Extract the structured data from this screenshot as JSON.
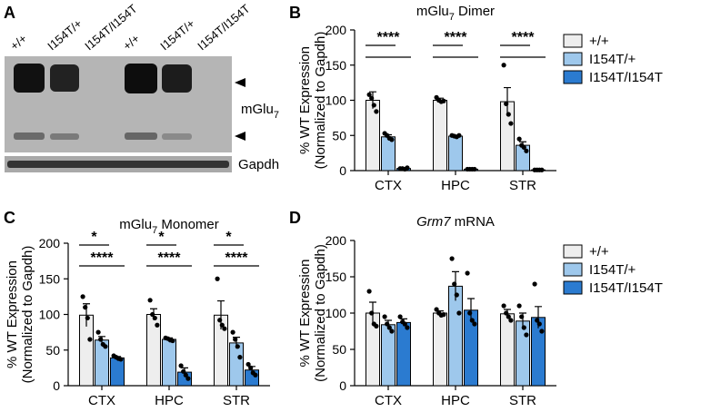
{
  "blot": {
    "panel_label": "A",
    "lanes": [
      "+/+",
      "I154T/+",
      "I154T/I154T",
      "+/+",
      "I154T/+",
      "I154T/I154T"
    ],
    "target": [
      {
        "text": "mGlu"
      },
      {
        "text": "7",
        "sub": true
      }
    ],
    "loading_control": "Gapdh"
  },
  "chart_data": [
    {
      "type": "bar",
      "panel_label": "B",
      "title": [
        {
          "text": "mGlu"
        },
        {
          "text": "7",
          "sub": true
        },
        {
          "text": " Dimer"
        }
      ],
      "ylabel": [
        "% WT Expression",
        "(Normalized to Gapdh)"
      ],
      "categories": [
        "CTX",
        "HPC",
        "STR"
      ],
      "ylim": [
        0,
        200
      ],
      "yticks": [
        0,
        50,
        100,
        150,
        200
      ],
      "legend": true,
      "series": [
        {
          "name": "+/+",
          "color": "#eeeeee",
          "values": [
            100,
            100,
            98
          ],
          "errors": [
            12,
            3,
            20
          ],
          "points": [
            [
              108,
              103,
              93,
              84
            ],
            [
              104,
              100,
              98,
              99
            ],
            [
              150,
              95,
              80,
              67
            ]
          ]
        },
        {
          "name": "I154T/+",
          "color": "#9ec8ec",
          "values": [
            48,
            49,
            36
          ],
          "errors": [
            3,
            1,
            5
          ],
          "points": [
            [
              53,
              50,
              46,
              44
            ],
            [
              50,
              49,
              48,
              50
            ],
            [
              45,
              36,
              33,
              28
            ]
          ]
        },
        {
          "name": "I154T/I154T",
          "color": "#2b7bd0",
          "values": [
            3,
            2,
            1
          ],
          "errors": [
            0.5,
            0.3,
            0.2
          ],
          "points": [
            [
              3,
              3,
              2,
              4
            ],
            [
              2,
              2,
              2,
              2
            ],
            [
              1,
              1,
              1,
              1
            ]
          ]
        }
      ],
      "significance": [
        {
          "category": 0,
          "comparisons": [
            [
              0,
              1
            ],
            [
              0,
              2
            ]
          ],
          "text": "****"
        },
        {
          "category": 1,
          "comparisons": [
            [
              0,
              1
            ],
            [
              0,
              2
            ]
          ],
          "text": "****"
        },
        {
          "category": 2,
          "comparisons": [
            [
              0,
              1
            ],
            [
              0,
              2
            ]
          ],
          "text": "****"
        }
      ]
    },
    {
      "type": "bar",
      "panel_label": "C",
      "title": [
        {
          "text": "mGlu"
        },
        {
          "text": "7",
          "sub": true
        },
        {
          "text": " Monomer"
        }
      ],
      "ylabel": [
        "% WT Expression",
        "(Normalized to Gapdh)"
      ],
      "categories": [
        "CTX",
        "HPC",
        "STR"
      ],
      "ylim": [
        0,
        200
      ],
      "yticks": [
        0,
        50,
        100,
        150,
        200
      ],
      "legend": false,
      "series": [
        {
          "color": "#eeeeee",
          "values": [
            99,
            100,
            99
          ],
          "errors": [
            16,
            8,
            20
          ],
          "points": [
            [
              125,
              110,
              95,
              65
            ],
            [
              120,
              100,
              95,
              85
            ],
            [
              150,
              92,
              85,
              80
            ]
          ]
        },
        {
          "color": "#9ec8ec",
          "values": [
            64,
            65,
            60
          ],
          "errors": [
            5,
            2,
            8
          ],
          "points": [
            [
              75,
              65,
              58,
              55
            ],
            [
              67,
              66,
              64,
              63
            ],
            [
              75,
              65,
              55,
              40
            ]
          ]
        },
        {
          "color": "#2b7bd0",
          "values": [
            39,
            19,
            22
          ],
          "errors": [
            2,
            6,
            5
          ],
          "points": [
            [
              42,
              40,
              38,
              37
            ],
            [
              28,
              20,
              15,
              10
            ],
            [
              30,
              25,
              18,
              15
            ]
          ]
        }
      ],
      "significance": [
        {
          "category": 0,
          "comparisons": [
            [
              0,
              1
            ]
          ],
          "text": "*"
        },
        {
          "category": 0,
          "comparisons": [
            [
              0,
              2
            ]
          ],
          "text": "****"
        },
        {
          "category": 1,
          "comparisons": [
            [
              0,
              1
            ]
          ],
          "text": "*"
        },
        {
          "category": 1,
          "comparisons": [
            [
              0,
              2
            ]
          ],
          "text": "****"
        },
        {
          "category": 2,
          "comparisons": [
            [
              0,
              1
            ]
          ],
          "text": "*"
        },
        {
          "category": 2,
          "comparisons": [
            [
              0,
              2
            ]
          ],
          "text": "****"
        }
      ]
    },
    {
      "type": "bar",
      "panel_label": "D",
      "title": [
        {
          "text": "Grm7",
          "italic": true
        },
        {
          "text": " mRNA"
        }
      ],
      "ylabel": [
        "% WT Expression",
        "(Normalized to Gapdh)"
      ],
      "categories": [
        "CTX",
        "HPC",
        "STR"
      ],
      "ylim": [
        0,
        200
      ],
      "yticks": [
        0,
        50,
        100,
        150,
        200
      ],
      "legend": true,
      "series": [
        {
          "name": "+/+",
          "color": "#eeeeee",
          "values": [
            100,
            100,
            99
          ],
          "errors": [
            15,
            3,
            6
          ],
          "points": [
            [
              130,
              100,
              85,
              82
            ],
            [
              105,
              100,
              97,
              98
            ],
            [
              110,
              100,
              95,
              90
            ]
          ]
        },
        {
          "name": "I154T/+",
          "color": "#9ec8ec",
          "values": [
            84,
            137,
            89
          ],
          "errors": [
            6,
            20,
            11
          ],
          "points": [
            [
              95,
              85,
              80,
              75
            ],
            [
              175,
              140,
              125,
              100
            ],
            [
              110,
              95,
              80,
              70
            ]
          ]
        },
        {
          "name": "I154T/I154T",
          "color": "#2b7bd0",
          "values": [
            87,
            104,
            94
          ],
          "errors": [
            5,
            16,
            15
          ],
          "points": [
            [
              95,
              88,
              85,
              80
            ],
            [
              155,
              100,
              90,
              85
            ],
            [
              140,
              90,
              85,
              75
            ]
          ]
        }
      ],
      "significance": []
    }
  ]
}
